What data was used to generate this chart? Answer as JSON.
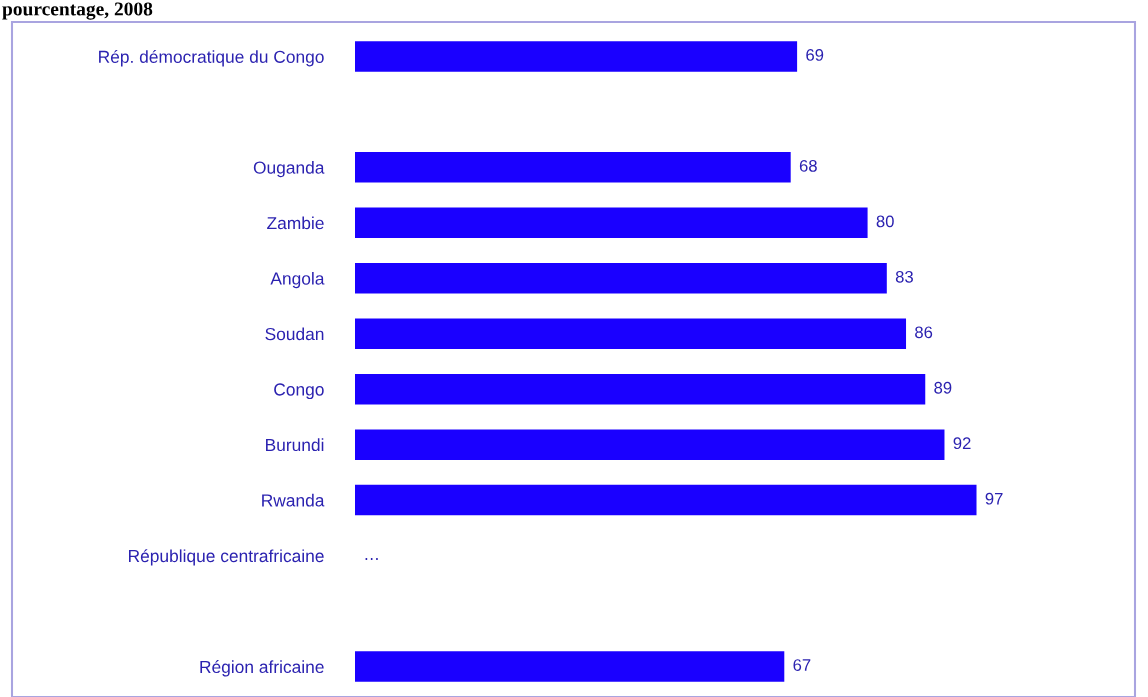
{
  "chart_data": {
    "type": "bar",
    "orientation": "horizontal",
    "title": "pourcentage, 2008",
    "categories": [
      "Rép. démocratique du Congo",
      null,
      "Ouganda",
      "Zambie",
      "Angola",
      "Soudan",
      "Congo",
      "Burundi",
      "Rwanda",
      "République centrafricaine",
      null,
      "Région africaine"
    ],
    "values": [
      69,
      null,
      68,
      80,
      83,
      86,
      89,
      92,
      97,
      null,
      null,
      67
    ],
    "value_labels": [
      "69",
      null,
      "68",
      "80",
      "83",
      "86",
      "89",
      "92",
      "97",
      "…",
      null,
      "67"
    ],
    "color": "#1a00ff",
    "grid": false,
    "legend": false,
    "tick_labels": "y"
  }
}
